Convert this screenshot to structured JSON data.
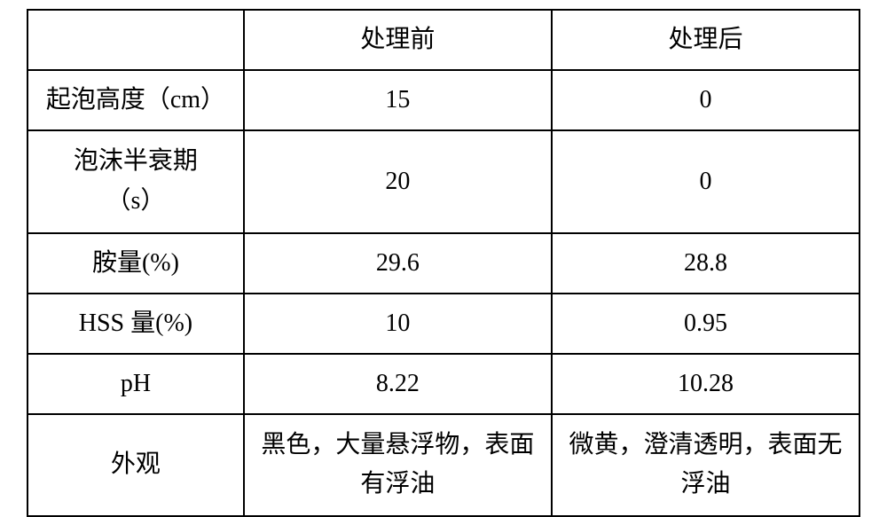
{
  "table": {
    "headers": {
      "blank": "",
      "before": "处理前",
      "after": "处理后"
    },
    "rows": [
      {
        "label": "起泡高度（cm）",
        "before": "15",
        "after": "0"
      },
      {
        "label": "泡沫半衰期\n（s）",
        "before": "20",
        "after": "0"
      },
      {
        "label": "胺量(%)",
        "before": "29.6",
        "after": "28.8"
      },
      {
        "label": "HSS 量(%)",
        "before": "10",
        "after": "0.95"
      },
      {
        "label": "pH",
        "before": "8.22",
        "after": "10.28"
      },
      {
        "label": "外观",
        "before": "黑色，大量悬浮物，表面有浮油",
        "after": "微黄，澄清透明，表面无浮油"
      }
    ],
    "styling": {
      "border_color": "#000000",
      "border_width": 2,
      "background_color": "#ffffff",
      "text_color": "#000000",
      "font_size": 28,
      "font_family": "SimSun",
      "cell_padding": 12,
      "text_align": "center"
    }
  }
}
